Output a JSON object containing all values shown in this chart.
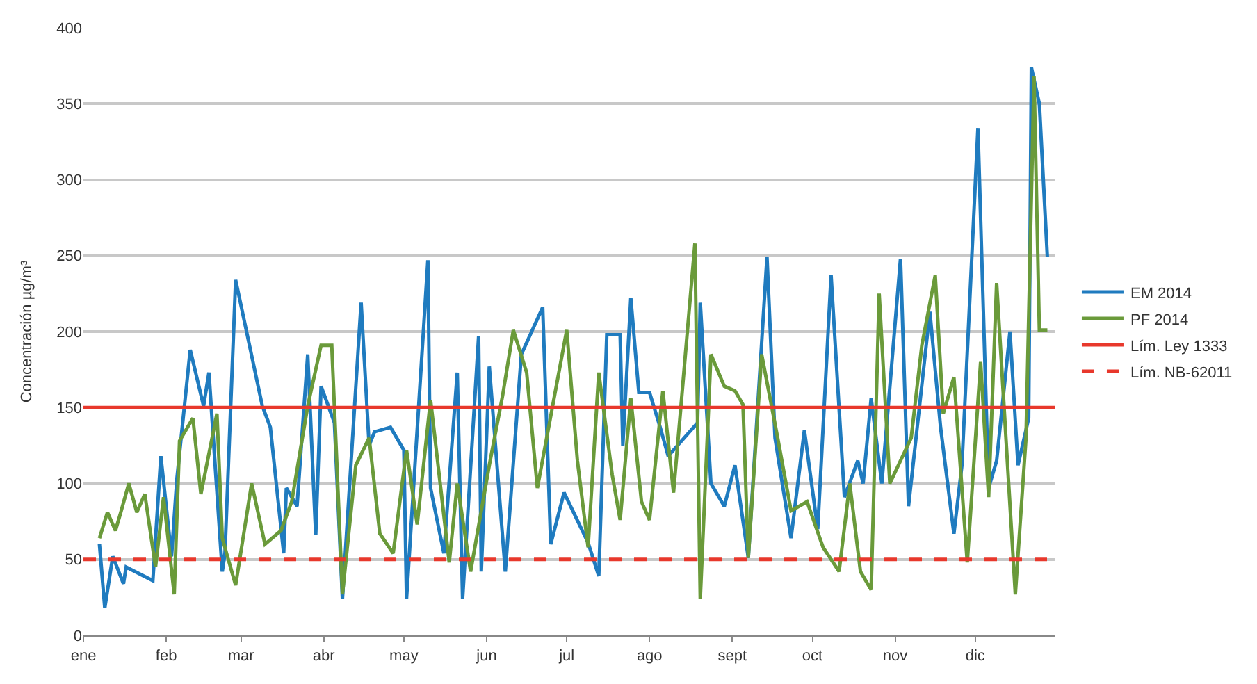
{
  "chart_data": {
    "type": "line",
    "ylabel": "Concentración µg/m³",
    "xlim": [
      "--01-01",
      "--12-31"
    ],
    "ylim": [
      0,
      400
    ],
    "xticks": [
      {
        "value": "--01-01",
        "label": "ene"
      },
      {
        "value": "--02-01",
        "label": "feb"
      },
      {
        "value": "--03-01",
        "label": "mar"
      },
      {
        "value": "--04-01",
        "label": "abr"
      },
      {
        "value": "--05-01",
        "label": "may"
      },
      {
        "value": "--06-01",
        "label": "jun"
      },
      {
        "value": "--07-01",
        "label": "jul"
      },
      {
        "value": "--08-01",
        "label": "ago"
      },
      {
        "value": "--09-01",
        "label": "sept"
      },
      {
        "value": "--10-01",
        "label": "oct"
      },
      {
        "value": "--11-01",
        "label": "nov"
      },
      {
        "value": "--12-01",
        "label": "dic"
      }
    ],
    "yticks": [
      0,
      50,
      100,
      150,
      200,
      250,
      300,
      350,
      400
    ],
    "grid": "y",
    "legend": "right",
    "marker": "none",
    "line_style": "solid",
    "series": [
      {
        "name": "EM 2014",
        "color": "#1f7bbf",
        "x": [
          "--01-07",
          "--01-09",
          "--01-12",
          "--01-16",
          "--01-17",
          "--01-27",
          "--01-30",
          "--02-03",
          "--02-05",
          "--02-10",
          "--02-15",
          "--02-17",
          "--02-22",
          "--02-23",
          "--02-27",
          "--03-09",
          "--03-12",
          "--03-17",
          "--03-18",
          "--03-22",
          "--03-26",
          "--03-29",
          "--03-31",
          "--04-05",
          "--04-08",
          "--04-15",
          "--04-18",
          "--04-20",
          "--04-26",
          "--05-01",
          "--05-02",
          "--05-10",
          "--05-11",
          "--05-16",
          "--05-21",
          "--05-23",
          "--05-29",
          "--05-30",
          "--06-02",
          "--06-08",
          "--06-14",
          "--06-22",
          "--06-25",
          "--06-30",
          "--07-09",
          "--07-13",
          "--07-16",
          "--07-21",
          "--07-22",
          "--07-25",
          "--07-28",
          "--08-01",
          "--08-05",
          "--08-08",
          "--08-19",
          "--08-20",
          "--08-24",
          "--08-29",
          "--09-02",
          "--09-07",
          "--09-14",
          "--09-17",
          "--09-23",
          "--09-28",
          "--10-03",
          "--10-08",
          "--10-13",
          "--10-18",
          "--10-20",
          "--10-23",
          "--10-27",
          "--11-03",
          "--11-06",
          "--11-14",
          "--11-18",
          "--11-23",
          "--11-26",
          "--12-02",
          "--12-06",
          "--12-09",
          "--12-14",
          "--12-17",
          "--12-21",
          "--12-22",
          "--12-25",
          "--12-28"
        ],
        "values": [
          60,
          18,
          52,
          34,
          45,
          36,
          118,
          52,
          103,
          188,
          151,
          173,
          42,
          54,
          234,
          151,
          137,
          54,
          97,
          85,
          185,
          66,
          164,
          140,
          24,
          219,
          125,
          134,
          137,
          122,
          24,
          247,
          97,
          54,
          173,
          24,
          197,
          42,
          177,
          42,
          185,
          216,
          60,
          94,
          61,
          39,
          198,
          198,
          125,
          222,
          160,
          160,
          137,
          118,
          140,
          219,
          100,
          85,
          112,
          51,
          249,
          130,
          64,
          135,
          70,
          237,
          91,
          115,
          100,
          156,
          100,
          248,
          85,
          213,
          137,
          67,
          112,
          334,
          97,
          115,
          200,
          112,
          143,
          374,
          350,
          249
        ]
      },
      {
        "name": "PF 2014",
        "color": "#6a9a3a",
        "x": [
          "--01-07",
          "--01-10",
          "--01-13",
          "--01-15",
          "--01-18",
          "--01-21",
          "--01-24",
          "--01-28",
          "--01-31",
          "--02-04",
          "--02-06",
          "--02-11",
          "--02-14",
          "--02-20",
          "--02-22",
          "--02-27",
          "--03-05",
          "--03-10",
          "--03-16",
          "--03-20",
          "--03-26",
          "--03-31",
          "--04-04",
          "--04-08",
          "--04-13",
          "--04-18",
          "--04-22",
          "--04-27",
          "--05-02",
          "--05-06",
          "--05-11",
          "--05-18",
          "--05-21",
          "--05-26",
          "--06-02",
          "--06-07",
          "--06-11",
          "--06-16",
          "--06-20",
          "--07-01",
          "--07-05",
          "--07-09",
          "--07-13",
          "--07-18",
          "--07-21",
          "--07-25",
          "--07-29",
          "--08-01",
          "--08-06",
          "--08-10",
          "--08-18",
          "--08-20",
          "--08-24",
          "--08-29",
          "--09-02",
          "--09-05",
          "--09-07",
          "--09-12",
          "--09-18",
          "--09-23",
          "--09-29",
          "--10-05",
          "--10-11",
          "--10-15",
          "--10-19",
          "--10-23",
          "--10-26",
          "--10-30",
          "--11-07",
          "--11-11",
          "--11-16",
          "--11-19",
          "--11-23",
          "--11-28",
          "--12-03",
          "--12-06",
          "--12-09",
          "--12-16",
          "--12-20",
          "--12-23",
          "--12-25",
          "--12-28"
        ],
        "values": [
          64,
          81,
          69,
          81,
          100,
          81,
          93,
          45,
          91,
          27,
          128,
          143,
          93,
          146,
          64,
          33,
          100,
          60,
          69,
          88,
          151,
          191,
          191,
          27,
          112,
          130,
          67,
          54,
          122,
          73,
          155,
          48,
          100,
          42,
          112,
          158,
          201,
          173,
          97,
          201,
          115,
          58,
          173,
          106,
          76,
          156,
          88,
          76,
          161,
          94,
          258,
          24,
          185,
          164,
          161,
          152,
          51,
          185,
          130,
          82,
          88,
          58,
          42,
          100,
          42,
          30,
          225,
          100,
          130,
          191,
          237,
          146,
          170,
          48,
          180,
          91,
          232,
          27,
          130,
          368,
          201,
          201
        ]
      }
    ],
    "ref_lines": [
      {
        "axis": "y",
        "value": 150,
        "label": "Lím. Ley 1333",
        "color": "#e8382c",
        "line_style": "solid"
      },
      {
        "axis": "y",
        "value": 50,
        "label": "Lím. NB-62011",
        "color": "#e8382c",
        "line_style": "dashed"
      }
    ]
  }
}
